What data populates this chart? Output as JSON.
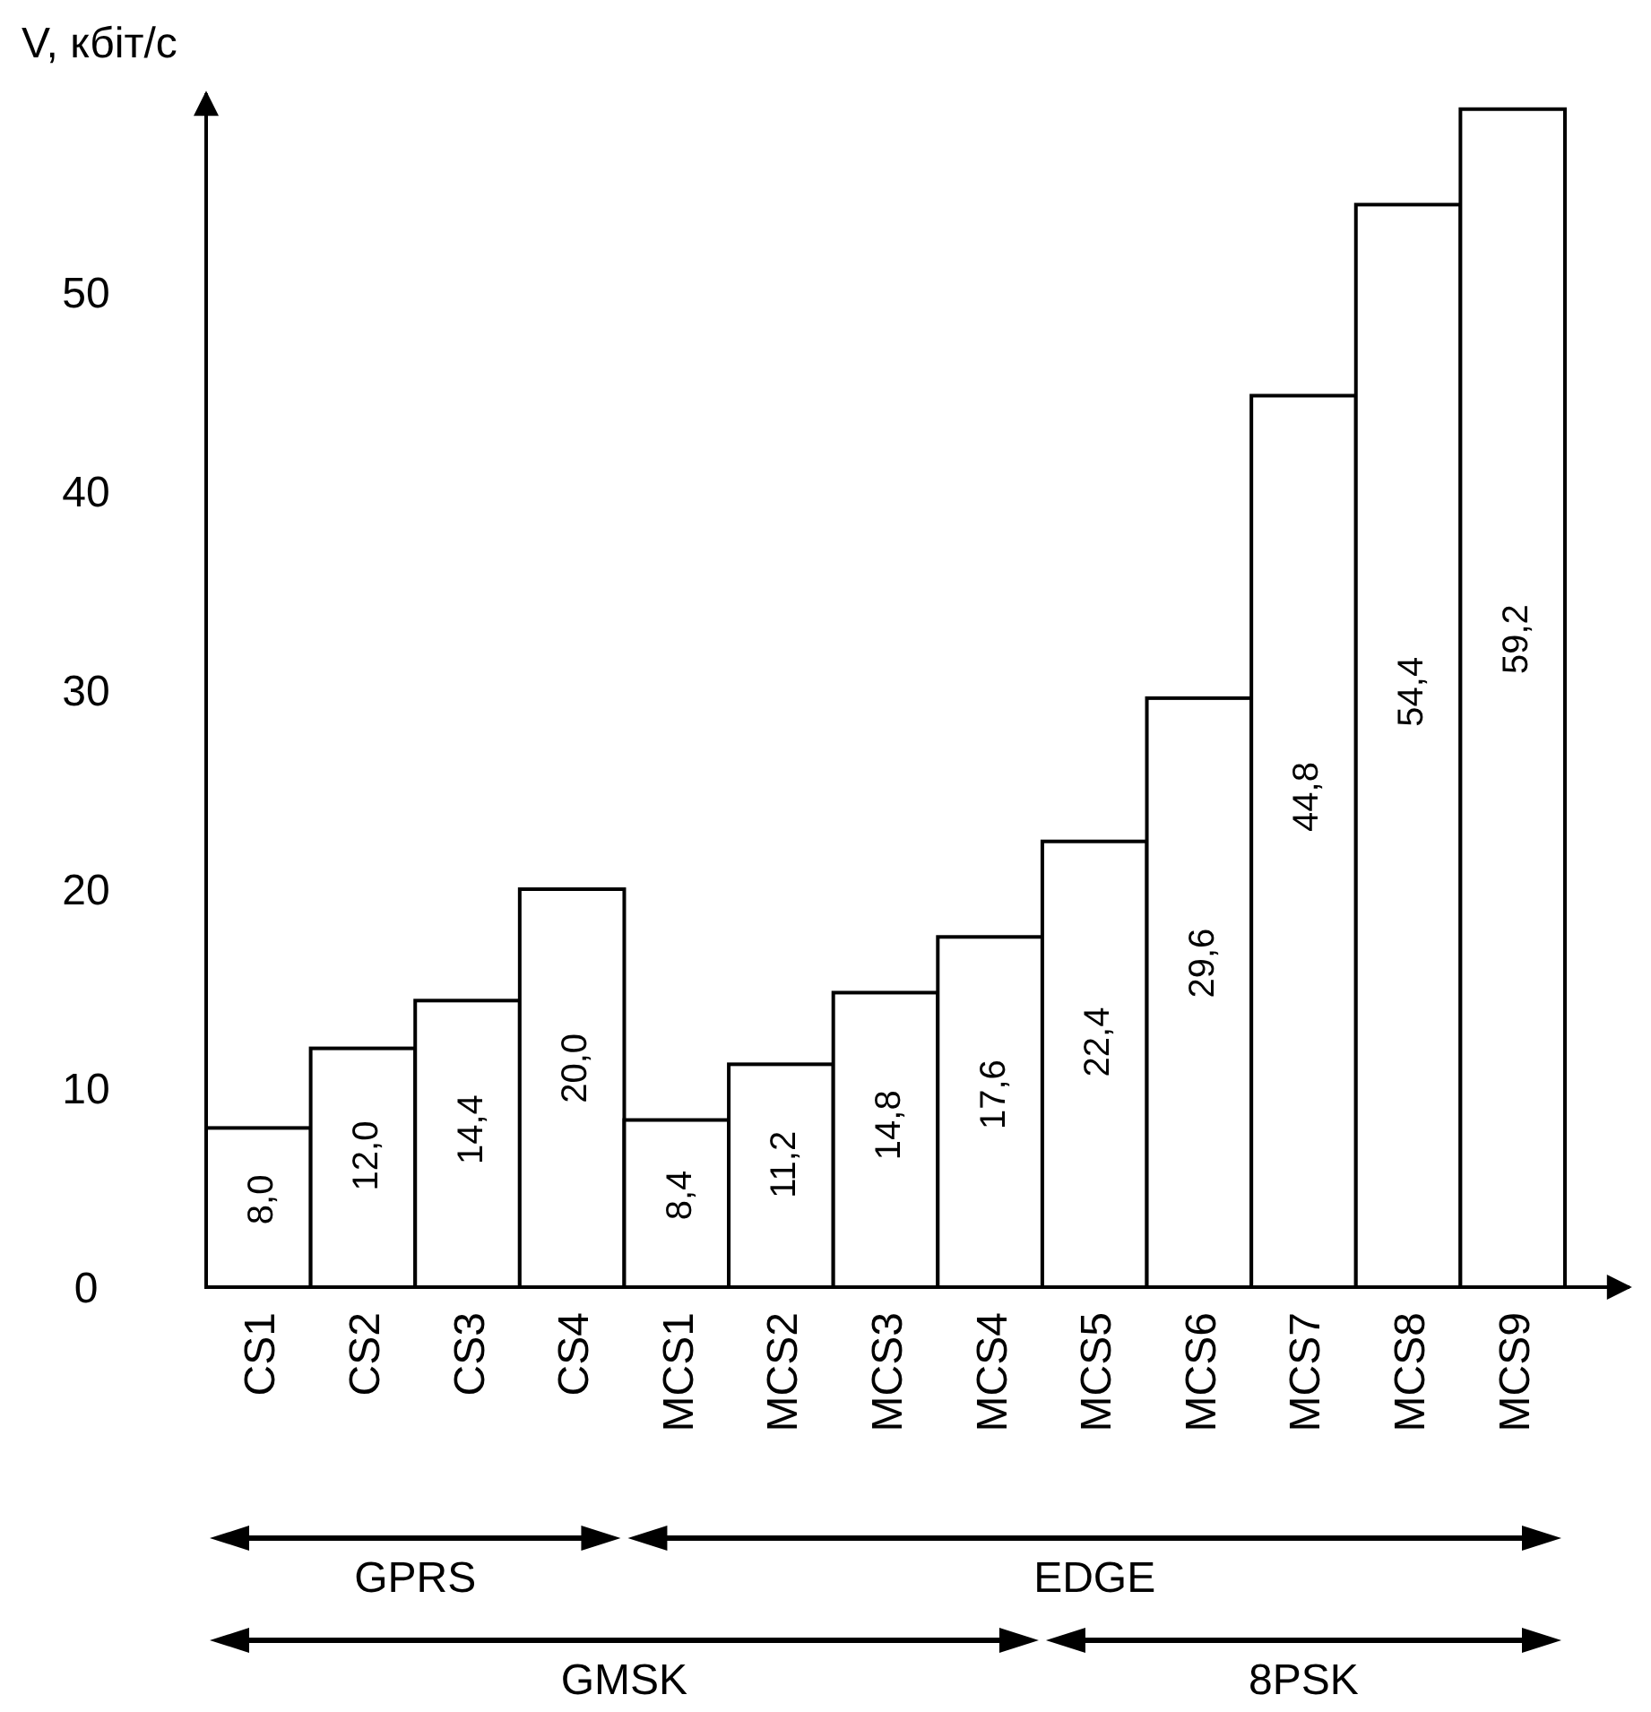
{
  "chart_data": {
    "type": "bar",
    "ylabel": "V, кбіт/с",
    "categories": [
      "CS1",
      "CS2",
      "CS3",
      "CS4",
      "MCS1",
      "MCS2",
      "MCS3",
      "MCS4",
      "MCS5",
      "MCS6",
      "MCS7",
      "MCS8",
      "MCS9"
    ],
    "values": [
      8.0,
      12.0,
      14.4,
      20.0,
      8.4,
      11.2,
      14.8,
      17.6,
      22.4,
      29.6,
      44.8,
      54.4,
      59.2
    ],
    "value_labels": [
      "8,0",
      "12,0",
      "14,4",
      "20,0",
      "8,4",
      "11,2",
      "14,8",
      "17,6",
      "22,4",
      "29,6",
      "44,8",
      "54,4",
      "59,2"
    ],
    "color": "#ffffff",
    "ylim": [
      0,
      60
    ],
    "yticks": [
      0,
      10,
      20,
      30,
      40,
      50
    ],
    "grid": false,
    "annotations": [
      "GPRS",
      "EDGE",
      "GMSK",
      "8PSK"
    ]
  }
}
